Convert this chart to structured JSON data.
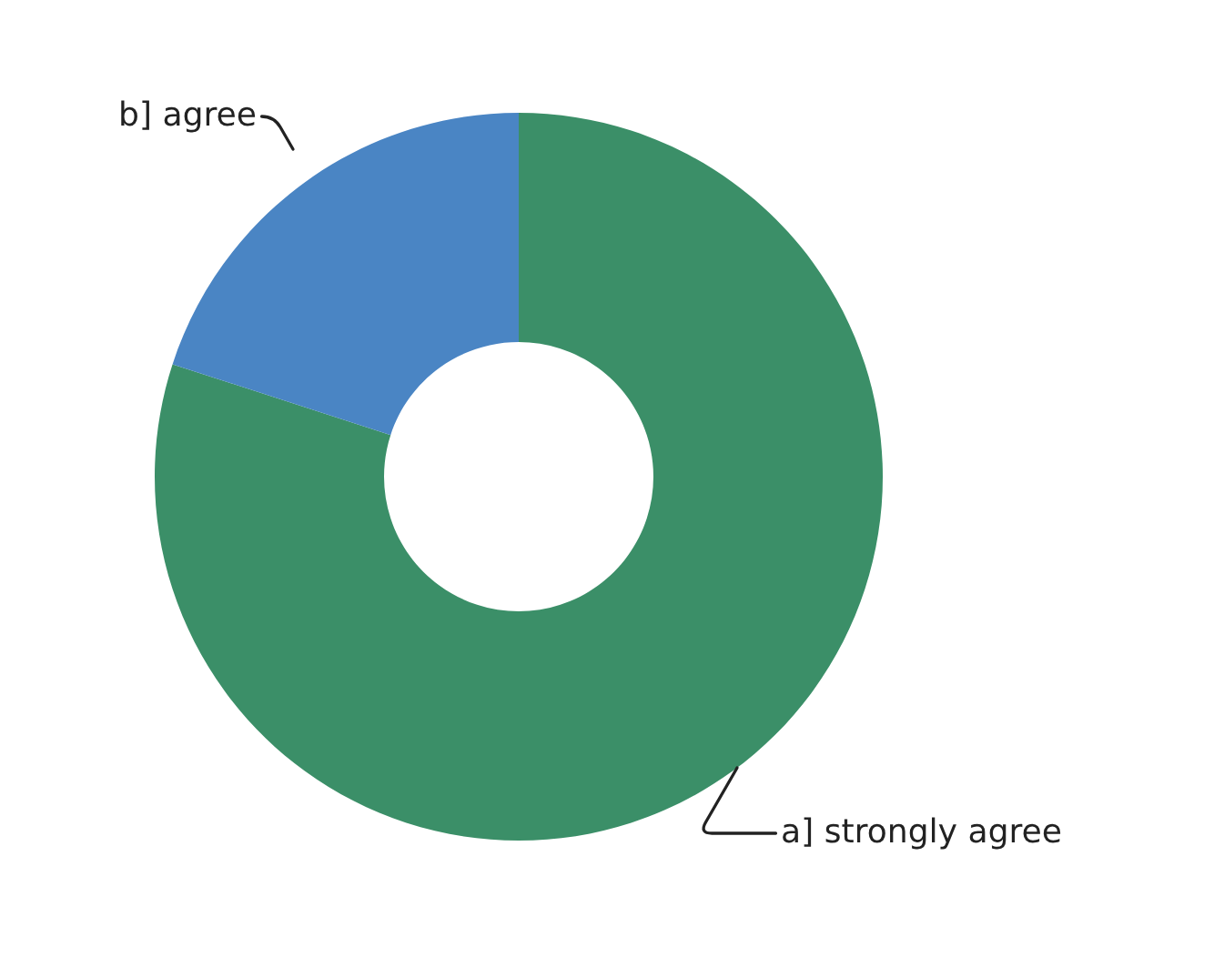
{
  "chart_data": {
    "type": "donut",
    "categories": [
      "a] strongly agree",
      "b] agree"
    ],
    "values": [
      80,
      20
    ],
    "colors": [
      "#3b8f68",
      "#4a85c4"
    ],
    "legend": false
  }
}
